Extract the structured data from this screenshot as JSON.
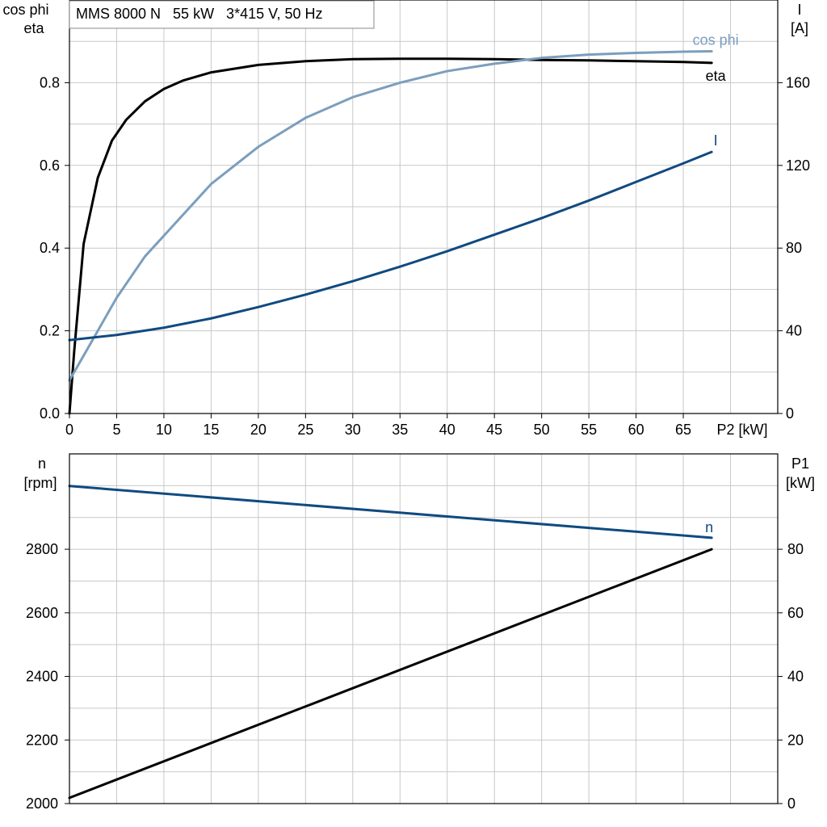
{
  "title": "MMS 8000 N   55 kW   3*415 V, 50 Hz",
  "colors": {
    "eta": "#000000",
    "cosphi": "#7b9ebd",
    "I": "#104a80",
    "n": "#104a80",
    "P1": "#000000",
    "grid": "#c8c8c8"
  },
  "chart_data": [
    {
      "type": "line",
      "title": "MMS 8000 N   55 kW   3*415 V, 50 Hz",
      "xlabel": "P2 [kW]",
      "xlim": [
        0,
        75
      ],
      "x_ticks": [
        "0",
        "5",
        "10",
        "15",
        "20",
        "25",
        "30",
        "35",
        "40",
        "45",
        "50",
        "55",
        "60",
        "65"
      ],
      "ylabel_left": [
        "cos phi",
        "eta"
      ],
      "ylim_left": [
        0,
        1.0
      ],
      "y_ticks_left": [
        "0.0",
        "0.2",
        "0.4",
        "0.6",
        "0.8"
      ],
      "ylabel_right": [
        "I",
        "[A]"
      ],
      "ylim_right": [
        0,
        200
      ],
      "y_ticks_right": [
        "0",
        "40",
        "80",
        "120",
        "160"
      ],
      "grid": true,
      "series": [
        {
          "name": "eta",
          "axis": "left",
          "color": "#000000",
          "x": [
            0,
            0.5,
            1.5,
            3,
            4.5,
            6,
            8,
            10,
            12,
            15,
            20,
            25,
            30,
            35,
            40,
            45,
            50,
            55,
            60,
            65,
            68
          ],
          "y": [
            0.0,
            0.15,
            0.41,
            0.57,
            0.66,
            0.71,
            0.755,
            0.785,
            0.805,
            0.825,
            0.843,
            0.852,
            0.857,
            0.858,
            0.858,
            0.857,
            0.855,
            0.854,
            0.852,
            0.85,
            0.848
          ]
        },
        {
          "name": "cos phi",
          "axis": "left",
          "color": "#7b9ebd",
          "x": [
            0,
            2,
            5,
            8,
            10,
            15,
            20,
            25,
            30,
            35,
            40,
            45,
            50,
            55,
            60,
            65,
            68
          ],
          "y": [
            0.08,
            0.16,
            0.28,
            0.38,
            0.43,
            0.555,
            0.645,
            0.715,
            0.765,
            0.8,
            0.828,
            0.846,
            0.86,
            0.868,
            0.872,
            0.875,
            0.876
          ]
        },
        {
          "name": "I",
          "axis": "right",
          "color": "#104a80",
          "x": [
            0,
            5,
            10,
            15,
            20,
            25,
            30,
            35,
            40,
            45,
            50,
            55,
            60,
            65,
            68
          ],
          "y": [
            35.5,
            38,
            41.5,
            46,
            51.5,
            57.5,
            64,
            71,
            78.5,
            86.5,
            94.5,
            103,
            112,
            121,
            126.5
          ]
        }
      ]
    },
    {
      "type": "line",
      "xlim": [
        0,
        75
      ],
      "ylabel_left": [
        "n",
        "[rpm]"
      ],
      "ylim_left": [
        2000,
        3100
      ],
      "y_ticks_left": [
        "2000",
        "2200",
        "2400",
        "2600",
        "2800"
      ],
      "ylabel_right": [
        "P1",
        "[kW]"
      ],
      "ylim_right": [
        0,
        110
      ],
      "y_ticks_right": [
        "0",
        "20",
        "40",
        "60",
        "80"
      ],
      "grid": true,
      "series": [
        {
          "name": "n",
          "axis": "left",
          "color": "#104a80",
          "x": [
            0,
            68
          ],
          "y": [
            2999,
            2836
          ]
        },
        {
          "name": "",
          "axis": "right",
          "color": "#000000",
          "x": [
            0,
            68
          ],
          "y": [
            1.8,
            80
          ]
        }
      ]
    }
  ]
}
